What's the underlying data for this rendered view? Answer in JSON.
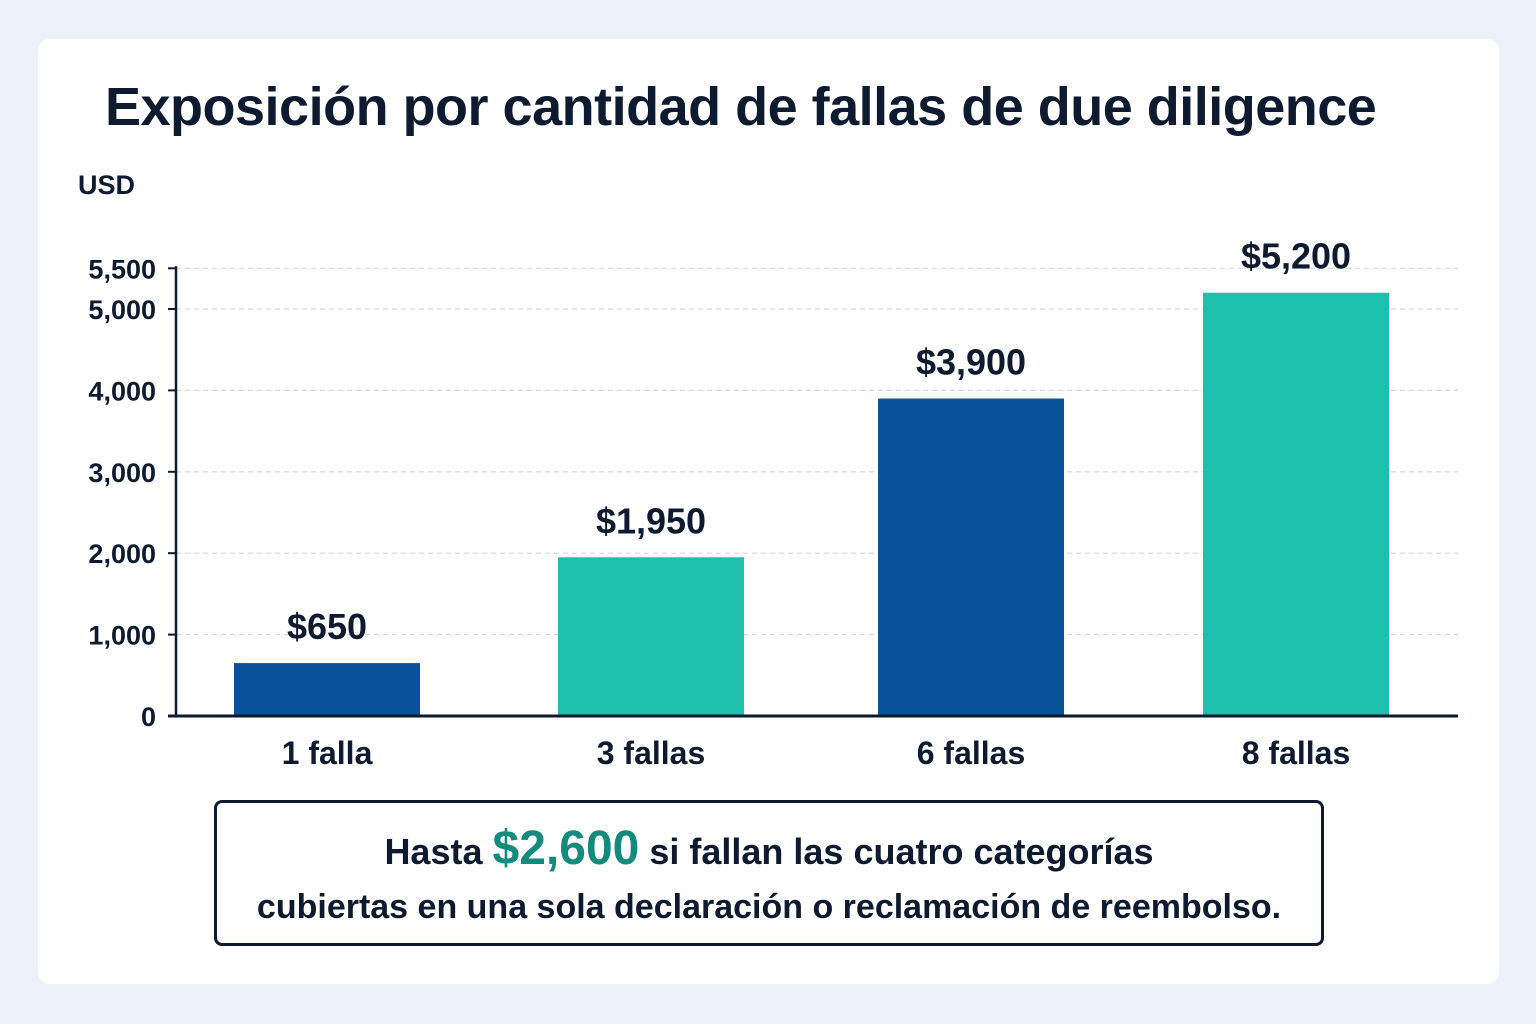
{
  "colors": {
    "dark_blue": "#08529a",
    "teal": "#1dbfad",
    "highlight": "#138a7e",
    "text": "#0e1a30"
  },
  "note": {
    "prefix": "Hasta",
    "highlight": "$2,600",
    "line1_rest": "si fallan las cuatro categorías",
    "line2": "cubiertas en una sola declaración o reclamación de reembolso."
  },
  "chart_data": {
    "type": "bar",
    "title": "Exposición por cantidad de fallas de due diligence",
    "ylabel": "USD",
    "xlabel": "",
    "ylim": [
      0,
      5500
    ],
    "yticks": [
      0,
      1000,
      2000,
      3000,
      4000,
      5000,
      5500
    ],
    "ytick_labels": [
      "0",
      "1,000",
      "2,000",
      "3,000",
      "4,000",
      "5,000",
      "5,500"
    ],
    "grid": true,
    "categories": [
      "1 falla",
      "3 fallas",
      "6 fallas",
      "8 fallas"
    ],
    "values": [
      650,
      1950,
      3900,
      5200
    ],
    "value_labels": [
      "$650",
      "$1,950",
      "$3,900",
      "$5,200"
    ],
    "bar_colors": [
      "#08529a",
      "#1dbfad",
      "#08529a",
      "#1dbfad"
    ]
  }
}
